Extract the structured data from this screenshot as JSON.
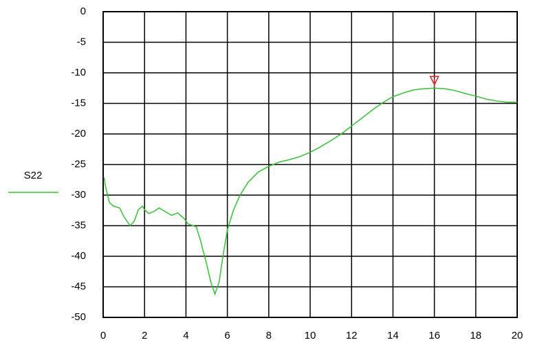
{
  "chart_data": {
    "type": "line",
    "series": [
      {
        "name": "S22",
        "color": "#2ec62e",
        "x": [
          0.05,
          0.1,
          0.3,
          0.5,
          0.8,
          1.0,
          1.3,
          1.5,
          1.7,
          1.9,
          2.0,
          2.2,
          2.5,
          2.7,
          3.0,
          3.3,
          3.6,
          3.9,
          4.1,
          4.5,
          4.7,
          5.0,
          5.2,
          5.4,
          5.6,
          5.8,
          6.0,
          6.3,
          6.6,
          7.0,
          7.5,
          8.0,
          8.5,
          9.0,
          9.5,
          10,
          10.5,
          11,
          11.5,
          12,
          12.5,
          13,
          13.5,
          14,
          14.5,
          15,
          15.5,
          16,
          16.5,
          17,
          17.5,
          18,
          18.5,
          19,
          19.5,
          20
        ],
        "values": [
          -27.1,
          -28.4,
          -31.2,
          -31.8,
          -32.1,
          -33.5,
          -35.0,
          -34.3,
          -32.4,
          -31.8,
          -32.4,
          -33.0,
          -32.6,
          -32.1,
          -32.7,
          -33.3,
          -32.9,
          -33.8,
          -34.7,
          -35.2,
          -37.4,
          -41.3,
          -44.2,
          -46.2,
          -44.2,
          -39.7,
          -35.7,
          -32.4,
          -30.1,
          -27.9,
          -26.2,
          -25.3,
          -24.6,
          -24.2,
          -23.7,
          -23.0,
          -22.1,
          -21.1,
          -20.0,
          -18.7,
          -17.4,
          -16.1,
          -14.9,
          -13.9,
          -13.3,
          -12.8,
          -12.6,
          -12.5,
          -12.6,
          -12.9,
          -13.4,
          -13.8,
          -14.3,
          -14.6,
          -14.8,
          -14.8
        ]
      }
    ],
    "markers": [
      {
        "x": 16,
        "y": -12.5,
        "color": "#e02020"
      }
    ],
    "xlim": [
      0,
      20
    ],
    "xticks": [
      0,
      2,
      4,
      6,
      8,
      10,
      12,
      14,
      16,
      18,
      20
    ],
    "ylim": [
      -50,
      0
    ],
    "yticks": [
      0,
      -5,
      -10,
      -15,
      -20,
      -25,
      -30,
      -35,
      -40,
      -45,
      -50
    ],
    "grid": true,
    "legend": "left"
  }
}
